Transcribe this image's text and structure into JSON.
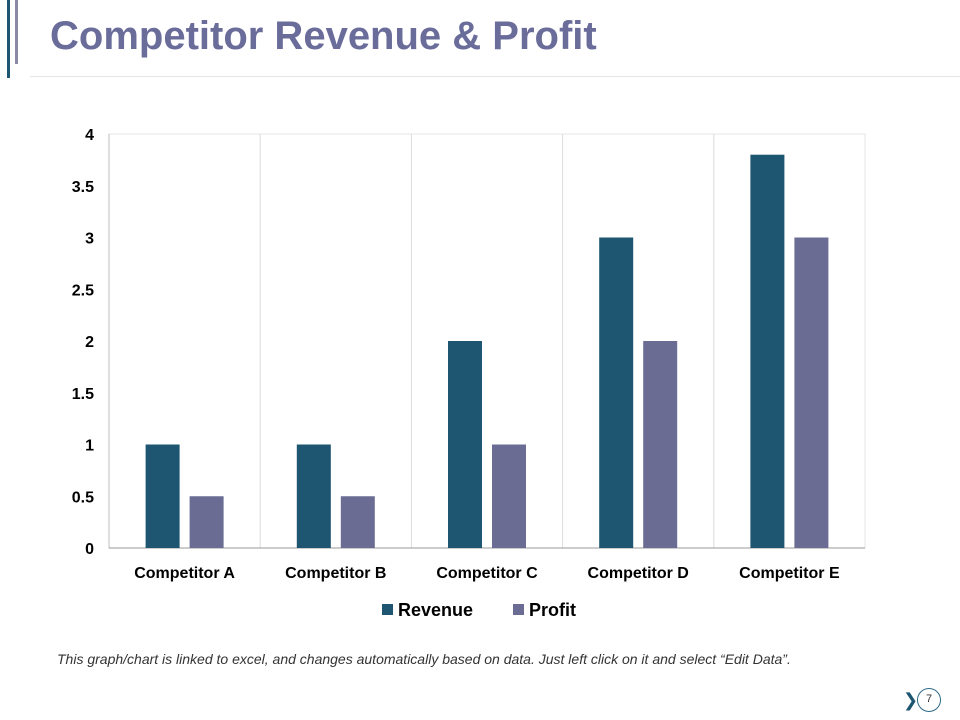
{
  "slide": {
    "title": "Competitor Revenue & Profit",
    "footnote": "This graph/chart is linked to excel, and changes automatically based on data. Just left click on it and select “Edit Data”.",
    "page_number": "7",
    "next_icon": "chevron-right-icon"
  },
  "colors": {
    "revenue": "#1e5570",
    "profit": "#6a6c94",
    "title": "#6a6c9a"
  },
  "chart_data": {
    "type": "bar",
    "title": "",
    "xlabel": "",
    "ylabel": "",
    "categories": [
      "Competitor A",
      "Competitor B",
      "Competitor C",
      "Competitor D",
      "Competitor E"
    ],
    "series": [
      {
        "name": "Revenue",
        "values": [
          1,
          1,
          2,
          3,
          3.8
        ]
      },
      {
        "name": "Profit",
        "values": [
          0.5,
          0.5,
          1,
          2,
          3
        ]
      }
    ],
    "ylim": [
      0,
      4
    ],
    "yticks": [
      "0",
      "0.5",
      "1",
      "1.5",
      "2",
      "2.5",
      "3",
      "3.5",
      "4"
    ],
    "legend": "bottom",
    "grid": "vertical category separators"
  }
}
